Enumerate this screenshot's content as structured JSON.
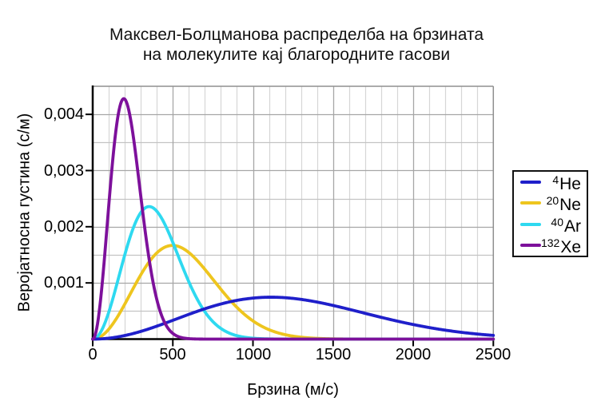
{
  "chart_data": {
    "type": "line",
    "title_line1": "Максвел-Болцманова распределба на брзината",
    "title_line2": "на молекулите кај благородните гасови",
    "xlabel": "Брзина (м/с)",
    "ylabel": "Веројатносна густина (с/м)",
    "xlim": [
      0,
      2500
    ],
    "ylim": [
      0,
      0.0045
    ],
    "x_major_step": 500,
    "x_minor_step": 100,
    "y_major_step": 0.001,
    "y_minor_step": 0.0005,
    "x_tick_labels": [
      "0",
      "500",
      "1000",
      "1500",
      "2000",
      "2500"
    ],
    "x_tick_values": [
      0,
      500,
      1000,
      1500,
      2000,
      2500
    ],
    "y_tick_labels": [
      "0,001",
      "0,002",
      "0,003",
      "0,004"
    ],
    "y_tick_values": [
      0.001,
      0.002,
      0.003,
      0.004
    ],
    "grid": true,
    "legend_position": "outside-right",
    "model": "Maxwell-Boltzmann speed distribution f(v) = (4/sqrt(pi)) * v^2/a^3 * exp(-v^2/a^2), a = most probable speed",
    "series": [
      {
        "label": "⁴He",
        "mass_number": "4",
        "symbol": "He",
        "color": "#1f1fca",
        "most_probable_speed_ms": 1113,
        "peak_density_s_per_m": 0.000746,
        "v": [
          0,
          100,
          200,
          300,
          400,
          500,
          600,
          700,
          800,
          900,
          1000,
          1100,
          1200,
          1300,
          1400,
          1500,
          1600,
          1700,
          1800,
          1900,
          2000,
          2100,
          2200,
          2300,
          2400,
          2500
        ],
        "f": [
          0,
          1.62e-05,
          6.34e-05,
          0.000137,
          0.00023,
          0.000335,
          0.000441,
          0.00054,
          0.000625,
          0.00069,
          0.00073,
          0.000746,
          0.000737,
          0.000707,
          0.00066,
          0.000599,
          0.000531,
          0.000459,
          0.000388,
          0.000321,
          0.00026,
          0.000206,
          0.00016,
          0.000121,
          9e-05,
          6.6e-05
        ]
      },
      {
        "label": "²⁰Ne",
        "mass_number": "20",
        "symbol": "Ne",
        "color": "#eec51e",
        "most_probable_speed_ms": 498,
        "peak_density_s_per_m": 0.00167,
        "v": [
          0,
          50,
          100,
          150,
          200,
          250,
          300,
          350,
          400,
          450,
          500,
          550,
          600,
          650,
          700,
          750,
          800,
          850,
          900,
          950,
          1000,
          1100,
          1200,
          1300,
          1400,
          1500,
          1600
        ],
        "f": [
          0,
          4.5e-05,
          0.000176,
          0.000376,
          0.000622,
          0.000888,
          0.00114,
          0.00137,
          0.00153,
          0.00164,
          0.00167,
          0.00163,
          0.00154,
          0.0014,
          0.00124,
          0.00106,
          0.000885,
          0.000715,
          0.000565,
          0.000433,
          0.000324,
          0.000168,
          7.9e-05,
          3.4e-05,
          1.32e-05,
          4.7e-06,
          1.5e-06
        ]
      },
      {
        "label": "⁴⁰Ar",
        "mass_number": "40",
        "symbol": "Ar",
        "color": "#2ed9f0",
        "most_probable_speed_ms": 352,
        "peak_density_s_per_m": 0.00236,
        "v": [
          0,
          50,
          100,
          150,
          200,
          250,
          300,
          350,
          400,
          450,
          500,
          550,
          600,
          650,
          700,
          750,
          800,
          850,
          900,
          950,
          1000,
          1100
        ],
        "f": [
          0,
          0.000127,
          0.000477,
          0.000971,
          0.0015,
          0.00195,
          0.00225,
          0.00236,
          0.00228,
          0.00204,
          0.00172,
          0.00136,
          0.00102,
          0.000723,
          0.000486,
          0.00031,
          0.000189,
          0.000109,
          6e-05,
          3.15e-05,
          1.62e-05,
          3.6e-06
        ]
      },
      {
        "label": "¹³²Xe",
        "mass_number": "132",
        "symbol": "Xe",
        "color": "#7d109b",
        "most_probable_speed_ms": 194,
        "peak_density_s_per_m": 0.00428,
        "v": [
          0,
          25,
          50,
          75,
          100,
          125,
          150,
          175,
          200,
          225,
          250,
          275,
          300,
          325,
          350,
          375,
          400,
          450,
          500,
          550,
          600,
          650
        ],
        "f": [
          0,
          0.00019,
          0.000723,
          0.0015,
          0.00237,
          0.00319,
          0.00383,
          0.0042,
          0.00427,
          0.00408,
          0.00367,
          0.00313,
          0.00255,
          0.00197,
          0.00146,
          0.00104,
          0.000705,
          0.000288,
          0.0001,
          3e-05,
          7.8e-06,
          1.8e-06
        ]
      }
    ]
  }
}
